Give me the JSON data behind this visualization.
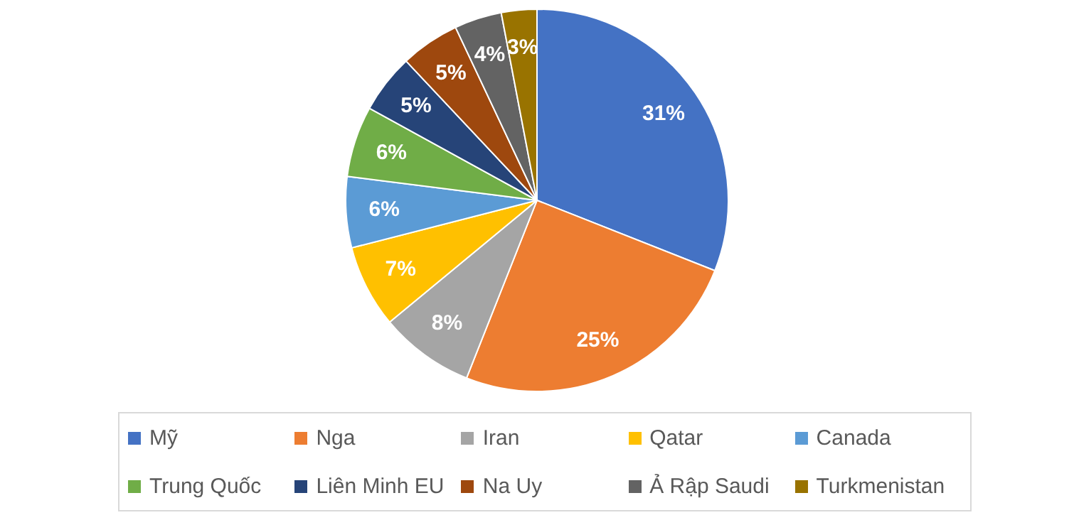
{
  "chart_data": {
    "type": "pie",
    "categories": [
      "Mỹ",
      "Nga",
      "Iran",
      "Qatar",
      "Canada",
      "Trung Quốc",
      "Liên Minh EU",
      "Na Uy",
      "Ả Rập Saudi",
      "Turkmenistan"
    ],
    "values": [
      31,
      25,
      8,
      7,
      6,
      6,
      5,
      5,
      4,
      3
    ],
    "colors": [
      "#4472c4",
      "#ed7d31",
      "#a5a5a5",
      "#ffc000",
      "#5b9bd5",
      "#70ad47",
      "#264478",
      "#9e480e",
      "#636363",
      "#997300"
    ],
    "value_labels": [
      "31%",
      "25%",
      "8%",
      "7%",
      "6%",
      "6%",
      "5%",
      "5%",
      "4%",
      "3%"
    ],
    "legend": "bottom"
  }
}
